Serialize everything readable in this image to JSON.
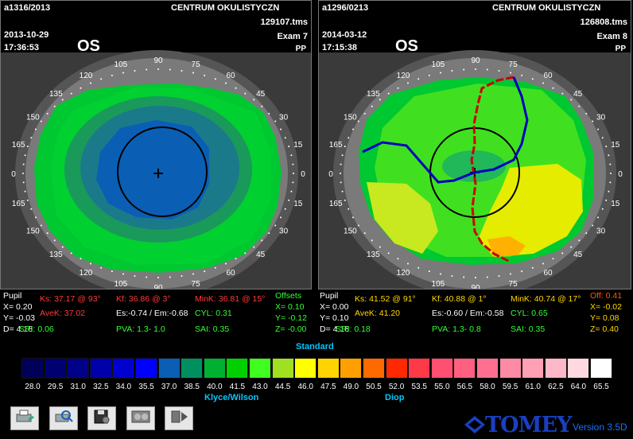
{
  "left": {
    "id": "a1316/2013",
    "clinic": "CENTRUM OKULISTYCZN",
    "file": "129107.tms",
    "date": "2013-10-29",
    "exam": "Exam 7",
    "time": "17:36:53",
    "eye": "OS",
    "pp": "PP",
    "stats": {
      "pupil": "Pupil",
      "x": "X= 0.20",
      "y": "Y= -0.03",
      "d": "D= 4.18",
      "ks": "Ks: 37.17 @ 93°",
      "kf": "Kf: 36.86 @ 3°",
      "mink": "MinK: 36.81 @ 15°",
      "avek": "AveK: 37.02",
      "es": "Es:-0.74 / Em:-0.68",
      "cyl": "CYL: 0.31",
      "sri": "SRI: 0.06",
      "pva": "PVA: 1.3- 1.0",
      "sai": "SAI: 0.35",
      "offsets": "Offsets",
      "ox": "X= 0.10",
      "oy": "Y= -0.12",
      "oz": "Z= -0.00"
    }
  },
  "right": {
    "id": "a1296/0213",
    "clinic": "CENTRUM OKULISTYCZN",
    "file": "126808.tms",
    "date": "2014-03-12",
    "exam": "Exam 8",
    "time": "17:15:38",
    "eye": "OS",
    "pp": "PP",
    "stats": {
      "pupil": "Pupil",
      "x": "X= 0.00",
      "y": "Y= 0.10",
      "d": "D= 4.18",
      "ks": "Ks: 41.52 @ 91°",
      "kf": "Kf: 40.88 @ 1°",
      "mink": "MinK: 40.74 @ 17°",
      "avek": "AveK: 41.20",
      "es": "Es:-0.60 / Em:-0.58",
      "cyl": "CYL: 0.65",
      "sri": "SRI: 0.18",
      "pva": "PVA: 1.3- 0.8",
      "sai": "SAI: 0.35",
      "off": "Off: 0.41",
      "ox": "X= -0.02",
      "oy": "Y= 0.08",
      "oz": "Z= 0.40"
    }
  },
  "axis_labels": [
    "0",
    "15",
    "30",
    "45",
    "60",
    "75",
    "90",
    "105",
    "120",
    "135",
    "150",
    "165"
  ],
  "scale": {
    "title": "Standard",
    "left_label": "Klyce/Wilson",
    "right_label": "Diop",
    "ticks": [
      "28.0",
      "29.5",
      "31.0",
      "32.5",
      "34.0",
      "35.5",
      "37.0",
      "38.5",
      "40.0",
      "41.5",
      "43.0",
      "44.5",
      "46.0",
      "47.5",
      "49.0",
      "50.5",
      "52.0",
      "53.5",
      "55.0",
      "56.5",
      "58.0",
      "59.5",
      "61.0",
      "62.5",
      "64.0",
      "65.5"
    ],
    "colors": [
      "#000058",
      "#000070",
      "#000088",
      "#0000a8",
      "#0000d0",
      "#0000ff",
      "#0a5fb4",
      "#009060",
      "#00b030",
      "#00d000",
      "#40ff20",
      "#a0e020",
      "#ffff00",
      "#ffd400",
      "#ffa000",
      "#ff6a00",
      "#ff2800",
      "#ff3a48",
      "#ff5070",
      "#ff6080",
      "#ff7090",
      "#ff8aa4",
      "#ffa0b4",
      "#ffb8c8",
      "#ffd8e0",
      "#ffffff"
    ]
  },
  "toolbar": [
    {
      "name": "print-preview-button",
      "icon": "printer-icon"
    },
    {
      "name": "print-zoom-button",
      "icon": "magnifier-icon"
    },
    {
      "name": "save-disk-button",
      "icon": "floppy-disk-icon"
    },
    {
      "name": "record-playback-button",
      "icon": "media-play-icon"
    },
    {
      "name": "camera-playback-button",
      "icon": "video-play-icon"
    }
  ],
  "brand": "TOMEY",
  "version": "Version 3.5D"
}
